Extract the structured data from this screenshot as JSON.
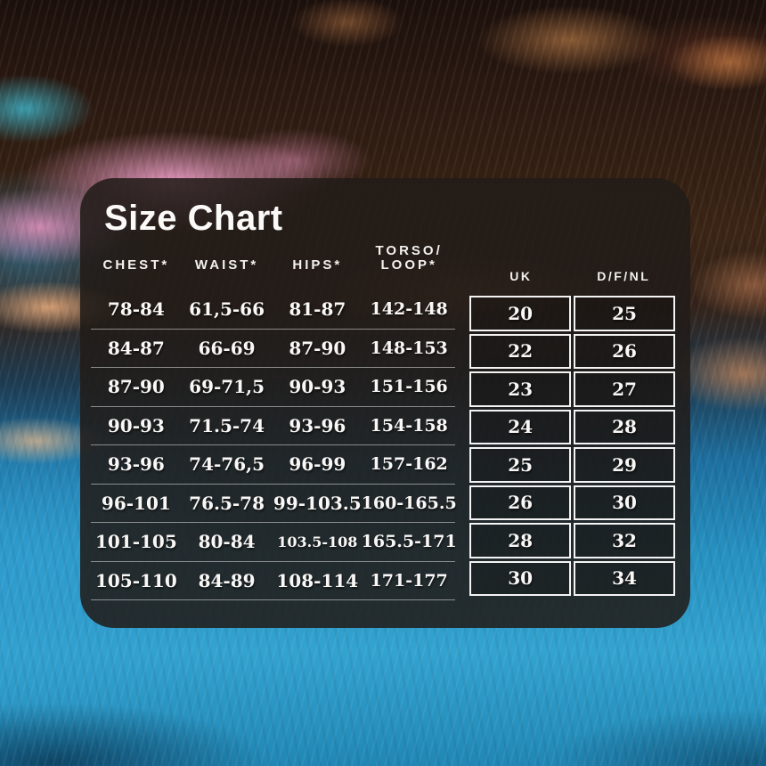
{
  "title": "Size Chart",
  "measurement_headers": [
    {
      "label": "CHEST*"
    },
    {
      "label": "WAIST*"
    },
    {
      "label": "HIPS*"
    },
    {
      "label_line1": "TORSO/",
      "label_line2": "LOOP*"
    }
  ],
  "size_table_headers": {
    "uk": "UK",
    "dfnl": "D/F/NL"
  },
  "chart_data": {
    "type": "table",
    "title": "Size Chart",
    "columns": [
      "CHEST*",
      "WAIST*",
      "HIPS*",
      "TORSO/LOOP*",
      "UK",
      "D/F/NL"
    ],
    "rows": [
      [
        "78-84",
        "61,5-66",
        "81-87",
        "142-148",
        "20",
        "25"
      ],
      [
        "84-87",
        "66-69",
        "87-90",
        "148-153",
        "22",
        "26"
      ],
      [
        "87-90",
        "69-71,5",
        "90-93",
        "151-156",
        "23",
        "27"
      ],
      [
        "90-93",
        "71.5-74",
        "93-96",
        "154-158",
        "24",
        "28"
      ],
      [
        "93-96",
        "74-76,5",
        "96-99",
        "157-162",
        "25",
        "29"
      ],
      [
        "96-101",
        "76.5-78",
        "99-103.5",
        "160-165.5",
        "26",
        "30"
      ],
      [
        "101-105",
        "80-84",
        "103.5-108",
        "165.5-171",
        "28",
        "32"
      ],
      [
        "105-110",
        "84-89",
        "108-114",
        "171-177",
        "30",
        "34"
      ]
    ]
  },
  "colors": {
    "panel_background": "#211b18",
    "text": "#faf8f6",
    "table_border": "#f4f4f4",
    "pool_blue": "#2691c1",
    "splash_pink": "#ec9cc6",
    "surface_orange": "#ee a05c"
  }
}
